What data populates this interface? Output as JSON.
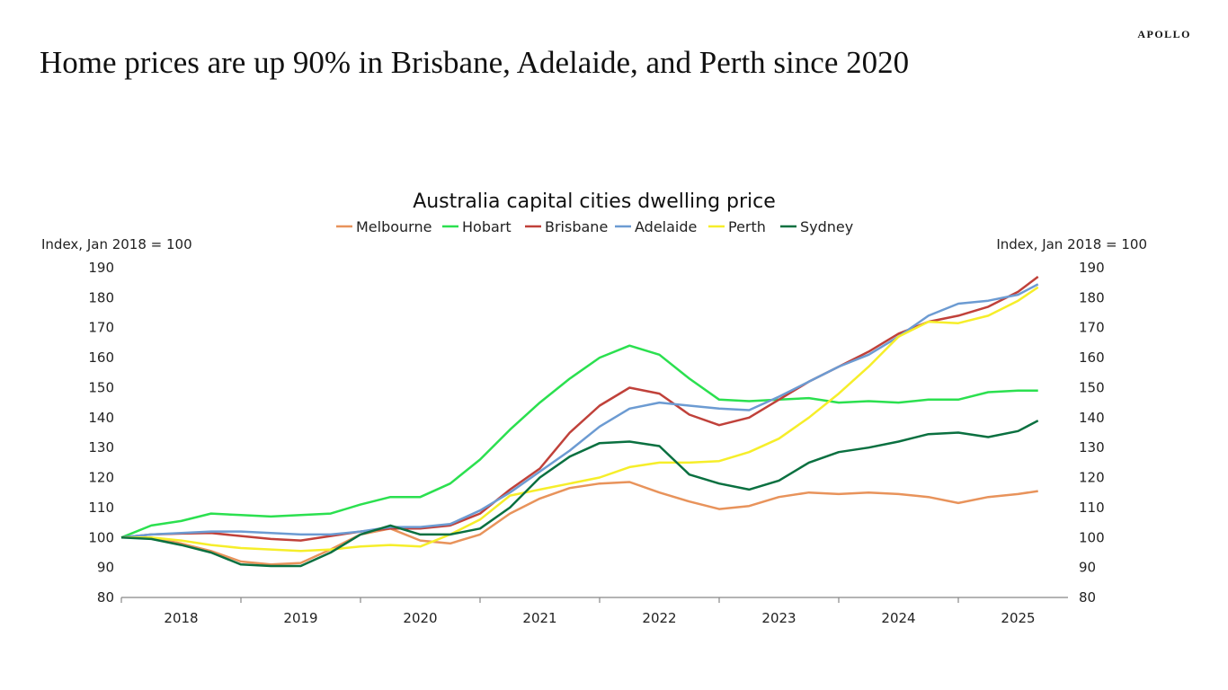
{
  "header": {
    "title": "Home prices are up 90% in Brisbane, Adelaide, and Perth since 2020",
    "logo": "APOLLO"
  },
  "chart_data": {
    "type": "line",
    "title": "Australia capital cities dwelling price",
    "ylabel_left": "Index, Jan 2018 = 100",
    "ylabel_right": "Index, Jan 2018 = 100",
    "ylim": [
      80,
      190
    ],
    "yticks": [
      80,
      90,
      100,
      110,
      120,
      130,
      140,
      150,
      160,
      170,
      180,
      190
    ],
    "xtick_labels": [
      "2018",
      "2019",
      "2020",
      "2021",
      "2022",
      "2023",
      "2024",
      "2025"
    ],
    "legend_position": "top",
    "grid": false,
    "x": [
      "2018-01",
      "2018-04",
      "2018-07",
      "2018-10",
      "2019-01",
      "2019-04",
      "2019-07",
      "2019-10",
      "2020-01",
      "2020-04",
      "2020-07",
      "2020-10",
      "2021-01",
      "2021-04",
      "2021-07",
      "2021-10",
      "2022-01",
      "2022-04",
      "2022-07",
      "2022-10",
      "2023-01",
      "2023-04",
      "2023-07",
      "2023-10",
      "2024-01",
      "2024-04",
      "2024-07",
      "2024-10",
      "2025-01",
      "2025-04",
      "2025-07",
      "2025-09"
    ],
    "series": [
      {
        "name": "Melbourne",
        "color": "#E8935B",
        "values": [
          100,
          100,
          98,
          95.5,
          92,
          91,
          91.5,
          96,
          101,
          103,
          99,
          98,
          101,
          108,
          113,
          116.5,
          118,
          118.5,
          115,
          112,
          109.5,
          110.5,
          113.5,
          115,
          114.5,
          115,
          114.5,
          113.5,
          111.5,
          113.5,
          114.5,
          115.5
        ]
      },
      {
        "name": "Hobart",
        "color": "#2BE04F",
        "values": [
          100,
          104,
          105.5,
          108,
          107.5,
          107,
          107.5,
          108,
          111,
          113.5,
          113.5,
          118,
          126,
          136,
          145,
          153,
          160,
          164,
          161,
          153,
          146,
          145.5,
          146,
          146.5,
          145,
          145.5,
          145,
          146,
          146,
          148.5,
          149,
          149
        ]
      },
      {
        "name": "Brisbane",
        "color": "#C0413A",
        "values": [
          100,
          101,
          101.3,
          101.5,
          100.5,
          99.5,
          99,
          100.5,
          102,
          103,
          103,
          104,
          108,
          116,
          123,
          135,
          144,
          150,
          148,
          141,
          137.5,
          140,
          146,
          152,
          157,
          162,
          168,
          172,
          174,
          177,
          182,
          187
        ]
      },
      {
        "name": "Adelaide",
        "color": "#6C9BD2",
        "values": [
          100,
          101,
          101.5,
          102,
          102,
          101.5,
          101,
          101,
          102,
          103.5,
          103.5,
          104.5,
          109,
          115,
          122,
          129,
          137,
          143,
          145,
          144,
          143,
          142.5,
          147,
          152,
          157,
          161,
          167,
          174,
          178,
          179,
          181,
          184.5
        ]
      },
      {
        "name": "Perth",
        "color": "#F6EE2A",
        "values": [
          100,
          100,
          99,
          97.5,
          96.5,
          96,
          95.5,
          96,
          97,
          97.5,
          97,
          101,
          106,
          114,
          116,
          118,
          120,
          123.5,
          125,
          125,
          125.5,
          128.5,
          133,
          140,
          148,
          157,
          167,
          172,
          171.5,
          174,
          179,
          183.5
        ]
      },
      {
        "name": "Sydney",
        "color": "#0A7040",
        "values": [
          100,
          99.5,
          97.5,
          95,
          91,
          90.5,
          90.5,
          95,
          101,
          104,
          101,
          101,
          103,
          110,
          120,
          127,
          131.5,
          132,
          130.5,
          121,
          118,
          116,
          119,
          125,
          128.5,
          130,
          132,
          134.5,
          135,
          133.5,
          135.5,
          139
        ]
      }
    ]
  }
}
